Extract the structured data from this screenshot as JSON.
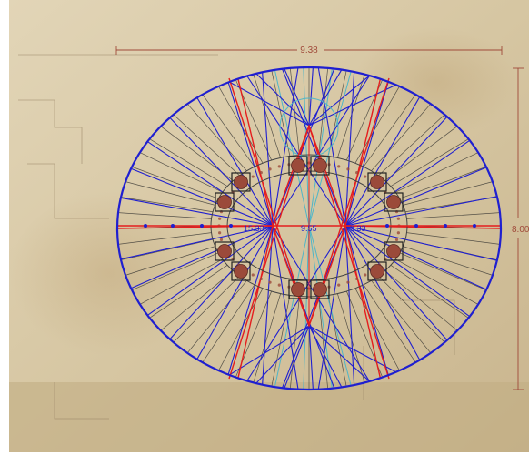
{
  "dimensions": {
    "width_label": "9.38",
    "height_label": "8.00"
  },
  "center_labels": {
    "left": "15.33",
    "middle": "9.55",
    "right": "9.33"
  },
  "colors": {
    "paper": "#d8c9a8",
    "outline_blue": "#1f1fd0",
    "red": "#e41e1e",
    "cyan": "#4fb6c8",
    "dim_line": "#a04a3a",
    "column": "#9b4a3a",
    "black": "#222222"
  }
}
